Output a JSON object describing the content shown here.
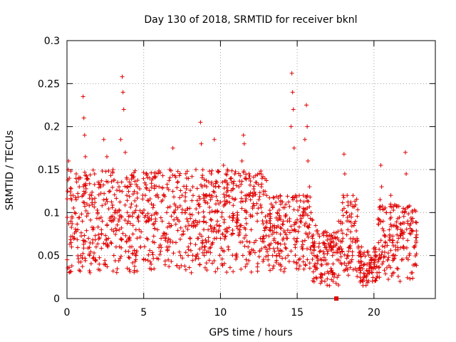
{
  "chart_data": {
    "type": "scatter",
    "title": "Day 130 of 2018, SRMTID for receiver bknl",
    "xlabel": "GPS time / hours",
    "ylabel": "SRMTID / TECUs",
    "xlim": [
      0,
      24
    ],
    "ylim": [
      0,
      0.3
    ],
    "xticks": [
      0,
      5,
      10,
      15,
      20
    ],
    "xtick_labels": [
      "0",
      "5",
      "10",
      "15",
      "20"
    ],
    "yticks": [
      0,
      0.05,
      0.1,
      0.15,
      0.2,
      0.25,
      0.3
    ],
    "ytick_labels": [
      "0",
      "0.05",
      "0.1",
      "0.15",
      "0.2",
      "0.25",
      "0.3"
    ],
    "grid": true,
    "marker": "plus",
    "series_color": "#e00000",
    "series": [
      {
        "name": "SRMTID",
        "points": [
          [
            0.1,
            0.16
          ],
          [
            0.15,
            0.14
          ],
          [
            0.25,
            0.09
          ],
          [
            0.3,
            0.06
          ],
          [
            0.4,
            0.12
          ],
          [
            0.5,
            0.1
          ],
          [
            0.6,
            0.145
          ],
          [
            0.7,
            0.08
          ],
          [
            0.8,
            0.13
          ],
          [
            0.9,
            0.05
          ],
          [
            1.0,
            0.09
          ],
          [
            1.05,
            0.235
          ],
          [
            1.1,
            0.21
          ],
          [
            1.15,
            0.19
          ],
          [
            1.2,
            0.165
          ],
          [
            1.3,
            0.11
          ],
          [
            1.4,
            0.07
          ],
          [
            1.5,
            0.03
          ],
          [
            1.6,
            0.12
          ],
          [
            1.7,
            0.08
          ],
          [
            1.8,
            0.145
          ],
          [
            1.9,
            0.06
          ],
          [
            2.0,
            0.1
          ],
          [
            2.1,
            0.04
          ],
          [
            2.2,
            0.13
          ],
          [
            2.3,
            0.09
          ],
          [
            2.4,
            0.185
          ],
          [
            2.5,
            0.11
          ],
          [
            2.6,
            0.165
          ],
          [
            2.7,
            0.07
          ],
          [
            2.8,
            0.125
          ],
          [
            2.9,
            0.09
          ],
          [
            3.0,
            0.15
          ],
          [
            3.1,
            0.1
          ],
          [
            3.2,
            0.06
          ],
          [
            3.3,
            0.135
          ],
          [
            3.4,
            0.08
          ],
          [
            3.5,
            0.185
          ],
          [
            3.6,
            0.258
          ],
          [
            3.65,
            0.24
          ],
          [
            3.7,
            0.22
          ],
          [
            3.8,
            0.17
          ],
          [
            3.9,
            0.12
          ],
          [
            4.0,
            0.09
          ],
          [
            4.1,
            0.06
          ],
          [
            4.2,
            0.11
          ],
          [
            4.3,
            0.075
          ],
          [
            4.4,
            0.1
          ],
          [
            4.5,
            0.05
          ],
          [
            4.6,
            0.13
          ],
          [
            4.7,
            0.08
          ],
          [
            4.8,
            0.06
          ],
          [
            4.9,
            0.1
          ],
          [
            5.0,
            0.045
          ],
          [
            5.1,
            0.12
          ],
          [
            5.2,
            0.07
          ],
          [
            5.3,
            0.09
          ],
          [
            5.4,
            0.035
          ],
          [
            5.5,
            0.11
          ],
          [
            5.6,
            0.14
          ],
          [
            5.7,
            0.065
          ],
          [
            5.8,
            0.1
          ],
          [
            5.9,
            0.08
          ],
          [
            6.0,
            0.13
          ],
          [
            6.1,
            0.055
          ],
          [
            6.2,
            0.09
          ],
          [
            6.3,
            0.12
          ],
          [
            6.4,
            0.07
          ],
          [
            6.5,
            0.1
          ],
          [
            6.6,
            0.045
          ],
          [
            6.7,
            0.15
          ],
          [
            6.8,
            0.085
          ],
          [
            6.9,
            0.175
          ],
          [
            7.0,
            0.11
          ],
          [
            7.1,
            0.065
          ],
          [
            7.2,
            0.135
          ],
          [
            7.3,
            0.09
          ],
          [
            7.4,
            0.05
          ],
          [
            7.5,
            0.12
          ],
          [
            7.6,
            0.075
          ],
          [
            7.7,
            0.1
          ],
          [
            7.8,
            0.14
          ],
          [
            7.9,
            0.06
          ],
          [
            8.0,
            0.105
          ],
          [
            8.1,
            0.03
          ],
          [
            8.2,
            0.13
          ],
          [
            8.3,
            0.085
          ],
          [
            8.4,
            0.15
          ],
          [
            8.5,
            0.07
          ],
          [
            8.6,
            0.11
          ],
          [
            8.7,
            0.205
          ],
          [
            8.75,
            0.18
          ],
          [
            8.8,
            0.13
          ],
          [
            8.9,
            0.09
          ],
          [
            9.0,
            0.06
          ],
          [
            9.1,
            0.12
          ],
          [
            9.2,
            0.08
          ],
          [
            9.3,
            0.1
          ],
          [
            9.4,
            0.145
          ],
          [
            9.5,
            0.065
          ],
          [
            9.6,
            0.185
          ],
          [
            9.7,
            0.11
          ],
          [
            9.8,
            0.09
          ],
          [
            9.9,
            0.13
          ],
          [
            10.0,
            0.07
          ],
          [
            10.1,
            0.1
          ],
          [
            10.2,
            0.155
          ],
          [
            10.3,
            0.08
          ],
          [
            10.4,
            0.12
          ],
          [
            10.5,
            0.06
          ],
          [
            10.6,
            0.095
          ],
          [
            10.7,
            0.14
          ],
          [
            10.8,
            0.075
          ],
          [
            10.9,
            0.115
          ],
          [
            11.0,
            0.05
          ],
          [
            11.1,
            0.1
          ],
          [
            11.2,
            0.13
          ],
          [
            11.3,
            0.085
          ],
          [
            11.4,
            0.16
          ],
          [
            11.5,
            0.19
          ],
          [
            11.55,
            0.18
          ],
          [
            11.6,
            0.14
          ],
          [
            11.7,
            0.1
          ],
          [
            11.8,
            0.06
          ],
          [
            11.9,
            0.12
          ],
          [
            12.0,
            0.08
          ],
          [
            12.1,
            0.105
          ],
          [
            12.2,
            0.065
          ],
          [
            12.3,
            0.135
          ],
          [
            12.4,
            0.09
          ],
          [
            12.5,
            0.115
          ],
          [
            12.6,
            0.07
          ],
          [
            12.7,
            0.1
          ],
          [
            12.8,
            0.125
          ],
          [
            12.9,
            0.06
          ],
          [
            13.0,
            0.09
          ],
          [
            13.1,
            0.045
          ],
          [
            13.2,
            0.08
          ],
          [
            13.3,
            0.11
          ],
          [
            13.4,
            0.05
          ],
          [
            13.5,
            0.085
          ],
          [
            13.6,
            0.065
          ],
          [
            13.7,
            0.1
          ],
          [
            13.8,
            0.04
          ],
          [
            13.9,
            0.075
          ],
          [
            14.0,
            0.055
          ],
          [
            14.1,
            0.09
          ],
          [
            14.2,
            0.035
          ],
          [
            14.3,
            0.07
          ],
          [
            14.4,
            0.05
          ],
          [
            14.5,
            0.09
          ],
          [
            14.6,
            0.2
          ],
          [
            14.65,
            0.262
          ],
          [
            14.7,
            0.24
          ],
          [
            14.75,
            0.22
          ],
          [
            14.8,
            0.175
          ],
          [
            14.9,
            0.12
          ],
          [
            15.0,
            0.07
          ],
          [
            15.1,
            0.045
          ],
          [
            15.2,
            0.09
          ],
          [
            15.3,
            0.06
          ],
          [
            15.4,
            0.12
          ],
          [
            15.5,
            0.185
          ],
          [
            15.6,
            0.225
          ],
          [
            15.65,
            0.2
          ],
          [
            15.7,
            0.16
          ],
          [
            15.8,
            0.13
          ],
          [
            15.9,
            0.1
          ],
          [
            16.0,
            0.07
          ],
          [
            16.1,
            0.05
          ],
          [
            16.2,
            0.085
          ],
          [
            16.3,
            0.035
          ],
          [
            16.4,
            0.06
          ],
          [
            16.5,
            0.025
          ],
          [
            16.6,
            0.045
          ],
          [
            16.7,
            0.065
          ],
          [
            16.8,
            0.02
          ],
          [
            16.9,
            0.04
          ],
          [
            17.0,
            0.055
          ],
          [
            17.1,
            0.015
          ],
          [
            17.2,
            0.035
          ],
          [
            17.3,
            0.05
          ],
          [
            17.4,
            0.025
          ],
          [
            17.5,
            0.07
          ],
          [
            17.6,
            0.045
          ],
          [
            17.7,
            0.09
          ],
          [
            17.8,
            0.06
          ],
          [
            17.9,
            0.04
          ],
          [
            18.0,
            0.12
          ],
          [
            18.05,
            0.168
          ],
          [
            18.1,
            0.145
          ],
          [
            18.2,
            0.1
          ],
          [
            18.3,
            0.08
          ],
          [
            18.4,
            0.06
          ],
          [
            18.5,
            0.11
          ],
          [
            18.6,
            0.05
          ],
          [
            18.7,
            0.085
          ],
          [
            18.8,
            0.035
          ],
          [
            18.9,
            0.07
          ],
          [
            19.0,
            0.05
          ],
          [
            19.1,
            0.03
          ],
          [
            19.2,
            0.06
          ],
          [
            19.3,
            0.02
          ],
          [
            19.4,
            0.04
          ],
          [
            19.5,
            0.025
          ],
          [
            19.6,
            0.055
          ],
          [
            19.7,
            0.03
          ],
          [
            19.8,
            0.045
          ],
          [
            19.9,
            0.02
          ],
          [
            20.0,
            0.04
          ],
          [
            20.1,
            0.05
          ],
          [
            20.2,
            0.03
          ],
          [
            20.3,
            0.065
          ],
          [
            20.4,
            0.115
          ],
          [
            20.45,
            0.155
          ],
          [
            20.5,
            0.13
          ],
          [
            20.6,
            0.09
          ],
          [
            20.7,
            0.06
          ],
          [
            20.8,
            0.1
          ],
          [
            20.9,
            0.045
          ],
          [
            21.0,
            0.08
          ],
          [
            21.1,
            0.12
          ],
          [
            21.2,
            0.065
          ],
          [
            21.3,
            0.03
          ],
          [
            21.4,
            0.05
          ],
          [
            21.5,
            0.035
          ],
          [
            21.6,
            0.07
          ],
          [
            21.7,
            0.02
          ],
          [
            21.8,
            0.045
          ],
          [
            21.9,
            0.06
          ],
          [
            22.0,
            0.1
          ],
          [
            22.05,
            0.17
          ],
          [
            22.1,
            0.145
          ],
          [
            22.2,
            0.09
          ],
          [
            22.3,
            0.05
          ],
          [
            22.4,
            0.075
          ],
          [
            22.5,
            0.03
          ],
          [
            22.6,
            0.06
          ],
          [
            22.7,
            0.04
          ],
          [
            22.75,
            0.065
          ]
        ],
        "dense_bands": [
          {
            "x": [
              0.0,
              13.0
            ],
            "y": [
              0.03,
              0.15
            ]
          },
          {
            "x": [
              13.0,
              16.0
            ],
            "y": [
              0.03,
              0.12
            ]
          },
          {
            "x": [
              16.0,
              17.8
            ],
            "y": [
              0.015,
              0.08
            ]
          },
          {
            "x": [
              17.8,
              19.0
            ],
            "y": [
              0.025,
              0.12
            ]
          },
          {
            "x": [
              19.0,
              20.2
            ],
            "y": [
              0.015,
              0.06
            ]
          },
          {
            "x": [
              20.2,
              22.8
            ],
            "y": [
              0.02,
              0.11
            ]
          }
        ]
      }
    ],
    "annotation": {
      "x": 17.55,
      "y": 0.0,
      "shape": "square"
    }
  }
}
